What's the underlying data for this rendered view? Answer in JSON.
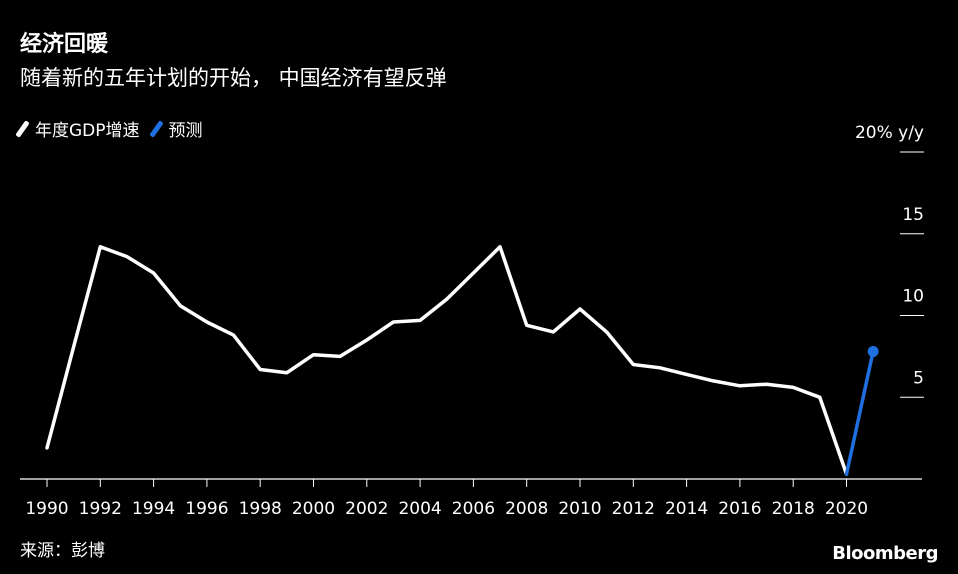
{
  "title": "经济回暖",
  "subtitle": "随着新的五年计划的开始， 中国经济有望反弹",
  "source": "来源：彭博",
  "brand": "Bloomberg",
  "chart_data": {
    "type": "line",
    "ylim": [
      0,
      20
    ],
    "y_ticks": [
      {
        "value": 5,
        "label": "5"
      },
      {
        "value": 10,
        "label": "10"
      },
      {
        "value": 15,
        "label": "15"
      },
      {
        "value": 20,
        "label": "20% y/y"
      }
    ],
    "x_ticks": [
      1990,
      1992,
      1994,
      1996,
      1998,
      2000,
      2002,
      2004,
      2006,
      2008,
      2010,
      2012,
      2014,
      2016,
      2018,
      2020
    ],
    "x_range": [
      1990,
      2021.5
    ],
    "grid": false,
    "legend_position": "top-left",
    "series": [
      {
        "name": "年度GDP增速",
        "color": "#ffffff",
        "x": [
          1990,
          1991,
          1992,
          1993,
          1994,
          1995,
          1996,
          1997,
          1998,
          1999,
          2000,
          2001,
          2002,
          2003,
          2004,
          2005,
          2006,
          2007,
          2008,
          2009,
          2010,
          2011,
          2012,
          2013,
          2014,
          2015,
          2016,
          2017,
          2018,
          2019,
          2020
        ],
        "values": [
          1.9,
          8.1,
          14.2,
          13.6,
          12.6,
          10.6,
          9.6,
          8.8,
          6.7,
          6.5,
          7.6,
          7.5,
          8.5,
          9.6,
          9.7,
          11.0,
          12.6,
          14.2,
          9.4,
          9.0,
          10.4,
          9.0,
          7.0,
          6.8,
          6.4,
          6.0,
          5.7,
          5.8,
          5.6,
          5.0,
          0.3
        ]
      },
      {
        "name": "预测",
        "color": "#1f6fe0",
        "x": [
          2020,
          2021
        ],
        "values": [
          0.3,
          7.8
        ]
      }
    ]
  }
}
